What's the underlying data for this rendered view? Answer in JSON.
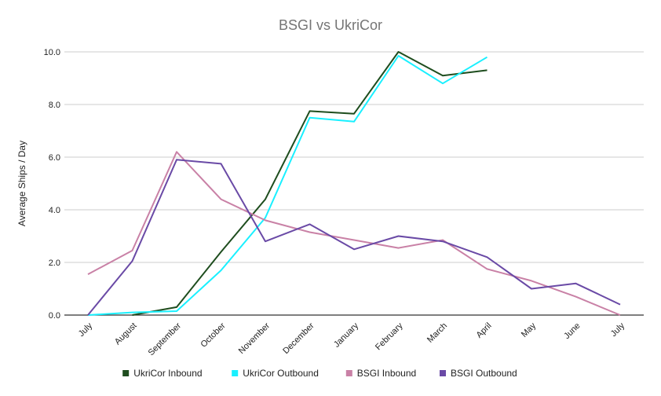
{
  "chart_data": {
    "type": "line",
    "title": "BSGI vs UkriCor",
    "xlabel": "",
    "ylabel": "Average Ships / Day",
    "ylim": [
      0,
      10
    ],
    "yticks": [
      "0.0",
      "2.0",
      "4.0",
      "6.0",
      "8.0",
      "10.0"
    ],
    "grid": true,
    "legend_position": "bottom",
    "categories": [
      "July",
      "August",
      "September",
      "October",
      "November",
      "December",
      "January",
      "February",
      "March",
      "April",
      "May",
      "June",
      "July"
    ],
    "series": [
      {
        "name": "UkriCor Inbound",
        "color": "#1e4d1e",
        "values": [
          null,
          0.0,
          0.3,
          2.4,
          4.4,
          7.75,
          7.65,
          10.0,
          9.1,
          9.3,
          null,
          null,
          null
        ]
      },
      {
        "name": "UkriCor Outbound",
        "color": "#19f0ff",
        "values": [
          0.0,
          0.1,
          0.15,
          1.7,
          3.7,
          7.5,
          7.35,
          9.85,
          8.8,
          9.8,
          null,
          null,
          null
        ]
      },
      {
        "name": "BSGI Inbound",
        "color": "#c981a6",
        "values": [
          1.55,
          2.45,
          6.2,
          4.4,
          3.6,
          3.15,
          2.85,
          2.55,
          2.85,
          1.75,
          1.3,
          0.7,
          0.0
        ]
      },
      {
        "name": "BSGI Outbound",
        "color": "#6a4aa6",
        "values": [
          0.0,
          2.05,
          5.9,
          5.75,
          2.8,
          3.45,
          2.5,
          3.0,
          2.8,
          2.2,
          1.0,
          1.2,
          0.4
        ]
      }
    ]
  }
}
